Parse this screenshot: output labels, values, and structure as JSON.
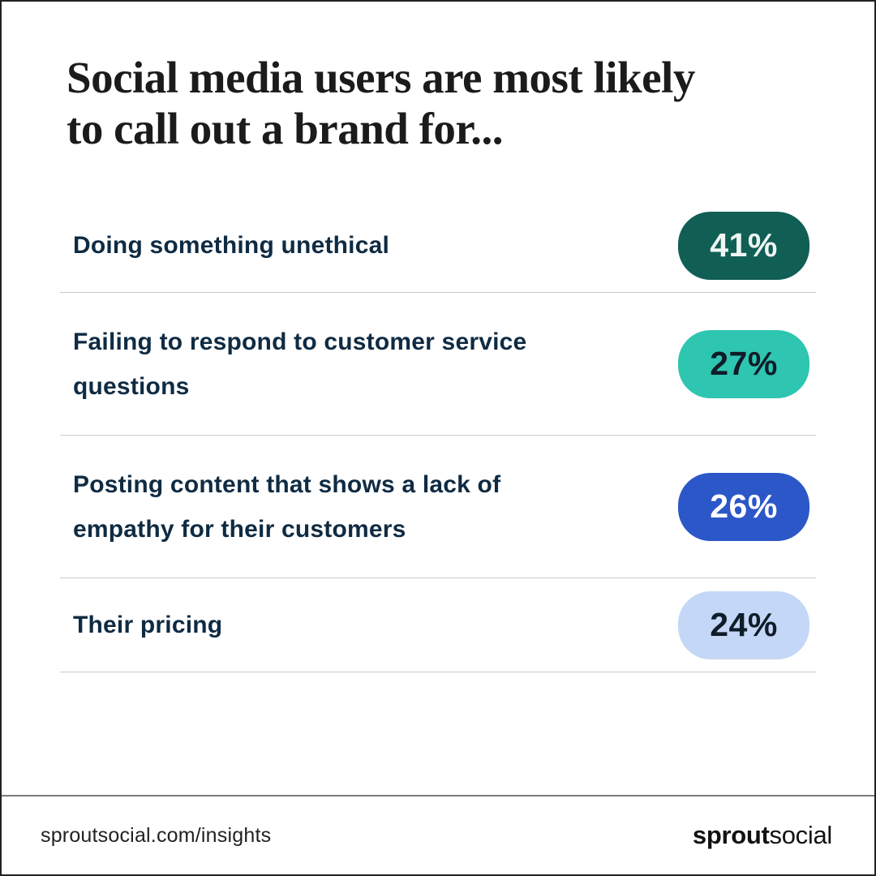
{
  "title": {
    "lines": [
      "Social media users are most likely",
      "to call out a brand for..."
    ]
  },
  "rows": [
    {
      "label": "Doing something unethical",
      "value": "41%",
      "pill_bg": "#115E54",
      "pill_fg": "#F0F6F4"
    },
    {
      "label": "Failing to respond to customer service questions",
      "value": "27%",
      "pill_bg": "#2EC5B1",
      "pill_fg": "#0F1D28"
    },
    {
      "label": "Posting content that shows a lack of empathy for their customers",
      "value": "26%",
      "pill_bg": "#2B57C8",
      "pill_fg": "#FFFFFF"
    },
    {
      "label": "Their pricing",
      "value": "24%",
      "pill_bg": "#C5D7F6",
      "pill_fg": "#0F1D28"
    }
  ],
  "footer": {
    "url": "sproutsocial.com/insights",
    "logo": {
      "bold": "sprout",
      "regular": "social"
    }
  },
  "colors": {
    "canvas_border": "#222222",
    "row_divider": "#cbcbcb",
    "footer_divider": "#7d7d7d",
    "label_navy": "#0f2b43",
    "title_ink": "#1b1b1b"
  },
  "chart_data": {
    "type": "bar",
    "title": "Social media users are most likely to call out a brand for...",
    "categories": [
      "Doing something unethical",
      "Failing to respond to customer service questions",
      "Posting content that shows a lack of empathy for their customers",
      "Their pricing"
    ],
    "values": [
      41,
      27,
      26,
      24
    ],
    "unit": "%",
    "bar_colors": [
      "#115E54",
      "#2EC5B1",
      "#2B57C8",
      "#C5D7F6"
    ],
    "orientation": "horizontal-list",
    "legend": "none",
    "source_label": "sproutsocial.com/insights"
  }
}
